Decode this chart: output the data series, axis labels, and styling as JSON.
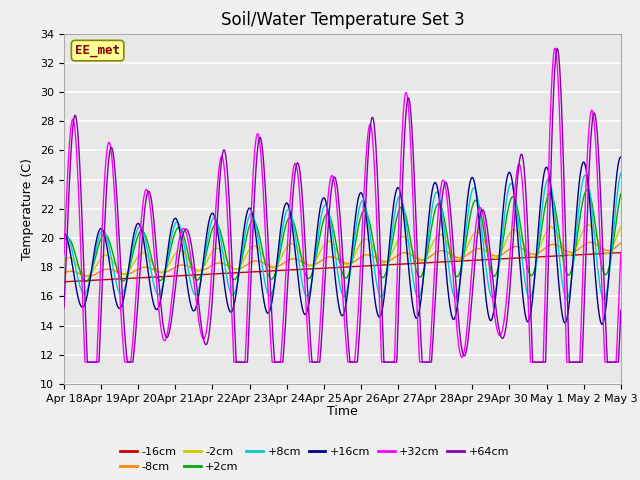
{
  "title": "Soil/Water Temperature Set 3",
  "xlabel": "Time",
  "ylabel": "Temperature (C)",
  "ylim": [
    10,
    34
  ],
  "n_days": 15,
  "x_ticks": [
    "Apr 18",
    "Apr 19",
    "Apr 20",
    "Apr 21",
    "Apr 22",
    "Apr 23",
    "Apr 24",
    "Apr 25",
    "Apr 26",
    "Apr 27",
    "Apr 28",
    "Apr 29",
    "Apr 30",
    "May 1",
    "May 2",
    "May 3"
  ],
  "series_colors": {
    "-16cm": "#cc0000",
    "-8cm": "#ff8800",
    "-2cm": "#cccc00",
    "+2cm": "#00aa00",
    "+8cm": "#00cccc",
    "+16cm": "#000088",
    "+32cm": "#ff00ff",
    "+64cm": "#8800aa"
  },
  "annotation_text": "EE_met",
  "annotation_bg": "#ffff99",
  "annotation_border": "#888800",
  "annotation_color": "#880000",
  "bg_color": "#e8e8e8",
  "grid_color": "#ffffff",
  "title_fontsize": 12,
  "label_fontsize": 9,
  "tick_fontsize": 8
}
